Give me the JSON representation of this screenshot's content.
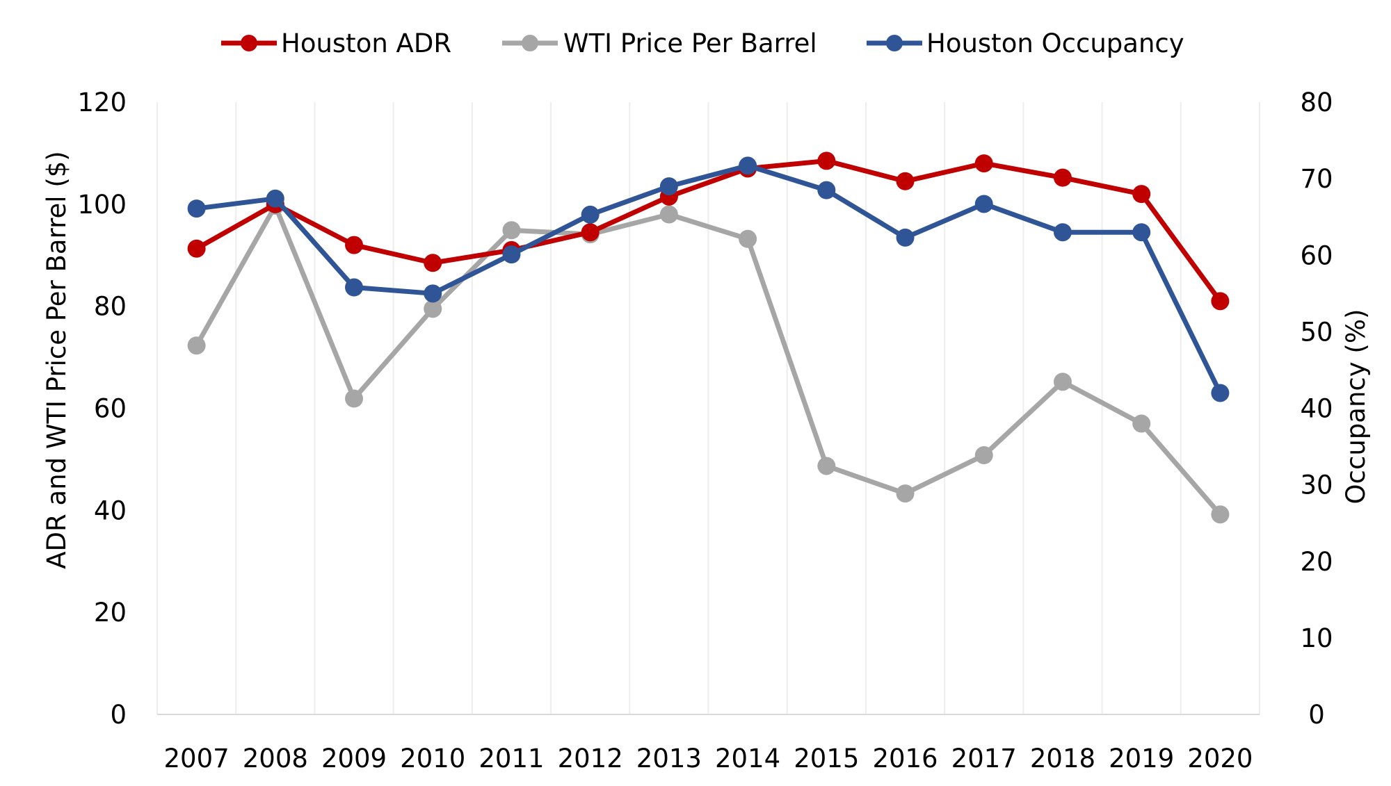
{
  "chart_data": {
    "type": "line",
    "categories": [
      "2007",
      "2008",
      "2009",
      "2010",
      "2011",
      "2012",
      "2013",
      "2014",
      "2015",
      "2016",
      "2017",
      "2018",
      "2019",
      "2020"
    ],
    "series": [
      {
        "name": "Houston ADR",
        "axis": "left",
        "color": "#C00000",
        "values": [
          91.3,
          100.0,
          92.0,
          88.5,
          91.0,
          94.5,
          101.5,
          107.0,
          108.5,
          104.5,
          108.0,
          105.2,
          102.0,
          81.0
        ]
      },
      {
        "name": "WTI Price Per Barrel",
        "axis": "left",
        "color": "#A6A6A6",
        "values": [
          72.3,
          99.7,
          61.9,
          79.5,
          94.9,
          94.1,
          98.0,
          93.2,
          48.7,
          43.3,
          50.8,
          65.2,
          57.0,
          39.2
        ]
      },
      {
        "name": "Houston Occupancy",
        "axis": "right",
        "color": "#2F5597",
        "values": [
          66.1,
          67.4,
          55.8,
          55.0,
          60.1,
          65.3,
          69.0,
          71.7,
          68.5,
          62.3,
          66.7,
          63.0,
          63.0,
          42.0
        ]
      }
    ],
    "ylabel": "ADR and WTI Price Per Barrel ($)",
    "ylabel_right": "Occupancy (%)",
    "ylim": [
      0,
      120
    ],
    "ylim_right": [
      0,
      80
    ],
    "yticks": [
      0,
      20,
      40,
      60,
      80,
      100,
      120
    ],
    "yticks_right": [
      0,
      10,
      20,
      30,
      40,
      50,
      60,
      70,
      80
    ],
    "grid": "vertical",
    "legend_position": "top-center"
  }
}
